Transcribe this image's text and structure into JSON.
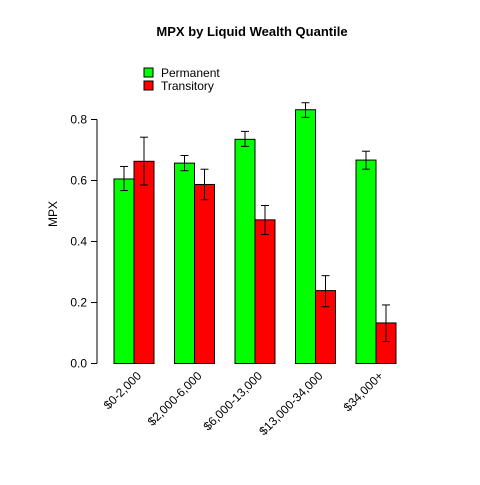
{
  "chart_data": {
    "type": "bar",
    "title": "MPX  by  Liquid Wealth Quantile",
    "xlabel": "",
    "ylabel": "MPX",
    "categories": [
      "$0-2,000",
      "$2,000-6,000",
      "$6,000-13,000",
      "$13,000-34,000",
      "$34,000+"
    ],
    "ylim": [
      0,
      0.85
    ],
    "yticks": [
      0.0,
      0.2,
      0.4,
      0.6,
      0.8
    ],
    "ytick_labels": [
      "0.0",
      "0.2",
      "0.4",
      "0.6",
      "0.8"
    ],
    "grid": false,
    "legend_position": "top-left",
    "series": [
      {
        "name": "Permanent",
        "color": "#00ff00",
        "values": [
          0.605,
          0.657,
          0.735,
          0.832,
          0.667
        ],
        "error_low": [
          0.567,
          0.632,
          0.712,
          0.807,
          0.637
        ],
        "error_high": [
          0.646,
          0.682,
          0.761,
          0.855,
          0.696
        ]
      },
      {
        "name": "Transitory",
        "color": "#ff0000",
        "values": [
          0.663,
          0.587,
          0.471,
          0.239,
          0.133
        ],
        "error_low": [
          0.585,
          0.537,
          0.423,
          0.186,
          0.072
        ],
        "error_high": [
          0.742,
          0.637,
          0.518,
          0.288,
          0.192
        ]
      }
    ]
  }
}
